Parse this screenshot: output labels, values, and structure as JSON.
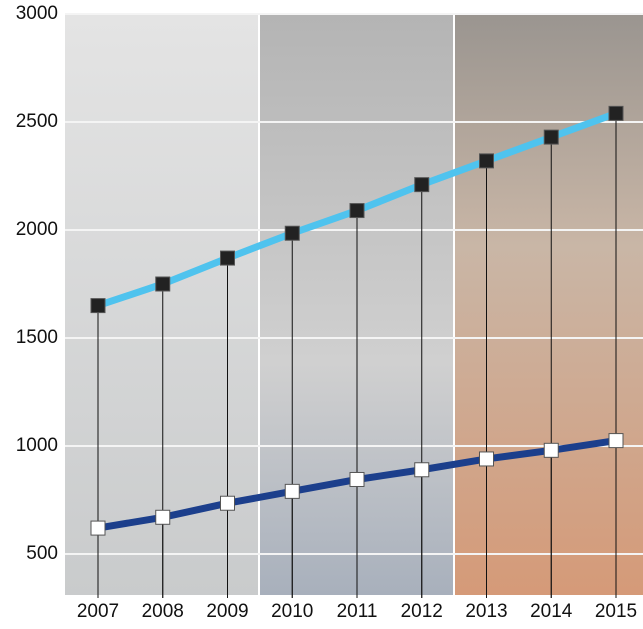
{
  "chart_data": {
    "type": "line",
    "categories": [
      "2007",
      "2008",
      "2009",
      "2010",
      "2011",
      "2012",
      "2013",
      "2014",
      "2015"
    ],
    "series": [
      {
        "color": "#4fc3ee",
        "marker_color": "#222222",
        "values": [
          1650,
          1750,
          1870,
          1985,
          2090,
          2210,
          2320,
          2430,
          2540
        ]
      },
      {
        "color": "#1c3f8c",
        "marker_color": "#ffffff",
        "values": [
          620,
          670,
          735,
          790,
          845,
          890,
          940,
          980,
          1025
        ]
      }
    ],
    "ylim": [
      0,
      3000
    ],
    "yticks": [
      500,
      1000,
      1500,
      2000,
      2500,
      3000
    ],
    "grid": true
  }
}
